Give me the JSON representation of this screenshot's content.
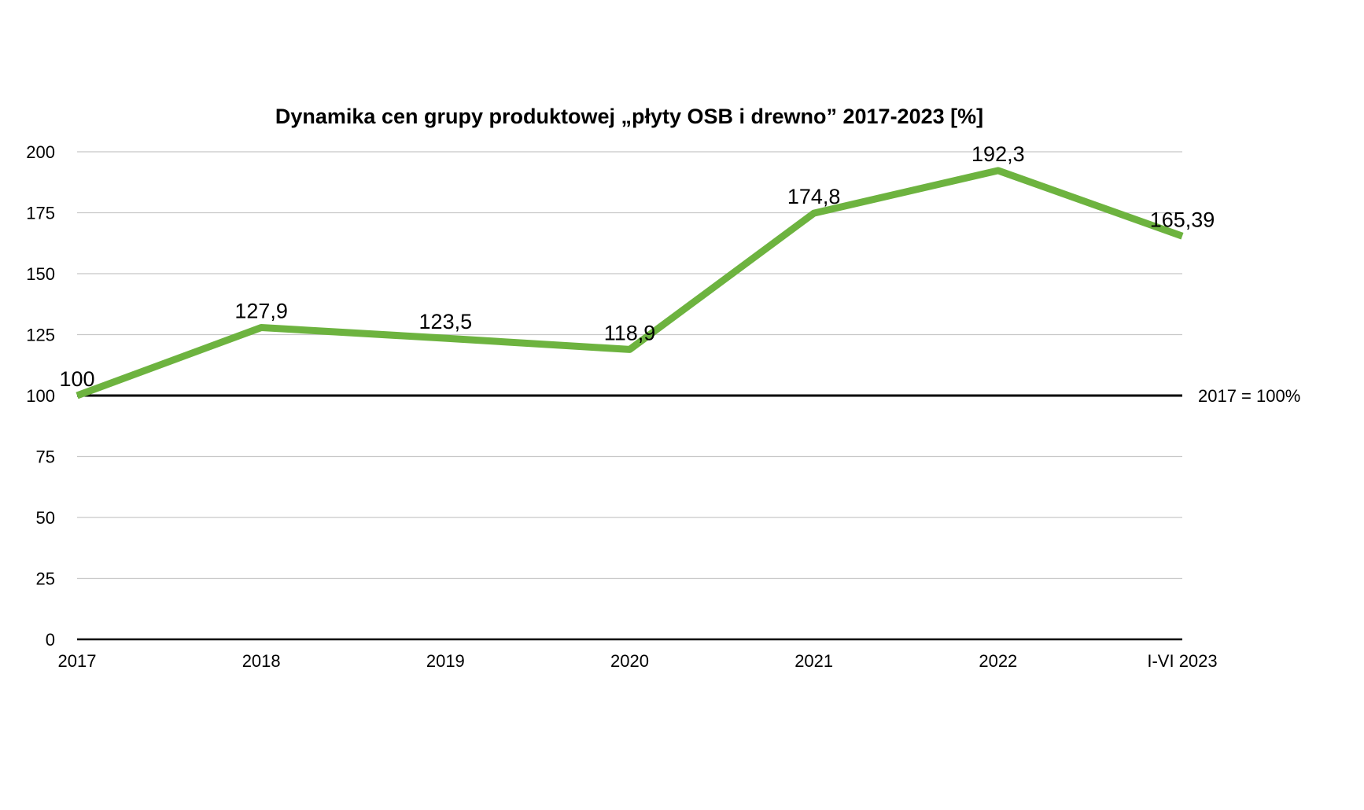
{
  "chart_data": {
    "type": "line",
    "title": "Dynamika cen grupy produktowej „płyty OSB i drewno” 2017-2023 [%]",
    "xlabel": "",
    "ylabel": "",
    "categories": [
      "2017",
      "2018",
      "2019",
      "2020",
      "2021",
      "2022",
      "I-VI 2023"
    ],
    "series": [
      {
        "values": [
          100,
          127.9,
          123.5,
          118.9,
          174.8,
          192.3,
          165.39
        ],
        "labels": [
          "100",
          "127,9",
          "123,5",
          "118,9",
          "174,8",
          "192,3",
          "165,39"
        ],
        "color": "#6db33f"
      }
    ],
    "ylim": [
      0,
      200
    ],
    "yticks": [
      0,
      25,
      50,
      75,
      100,
      125,
      150,
      175,
      200
    ],
    "grid": true,
    "legend": "none",
    "reference_line": {
      "value": 100,
      "label": "2017 = 100%",
      "color": "#000000"
    },
    "gridline_color": "#c8c8c8"
  }
}
